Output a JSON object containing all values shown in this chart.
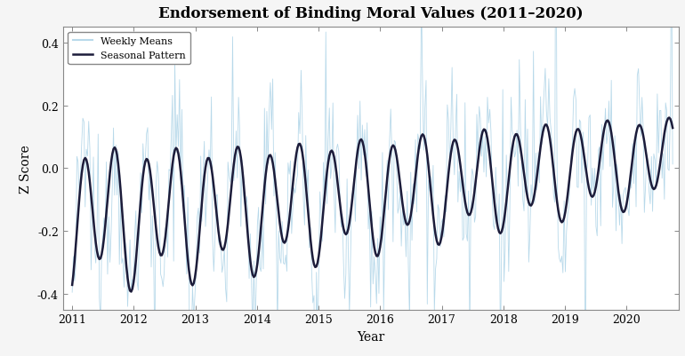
{
  "title": "Endorsement of Binding Moral Values (2011–2020)",
  "xlabel": "Year",
  "ylabel": "Z Score",
  "ylim": [
    -0.45,
    0.45
  ],
  "xlim_start": 2010.85,
  "xlim_end": 2020.85,
  "yticks": [
    -0.4,
    -0.2,
    0.0,
    0.2,
    0.4
  ],
  "xticks": [
    2011,
    2012,
    2013,
    2014,
    2015,
    2016,
    2017,
    2018,
    2019,
    2020
  ],
  "weekly_color": "#b8d9ea",
  "seasonal_color": "#1c1c3a",
  "legend_labels": [
    "Weekly Means",
    "Seasonal Pattern"
  ],
  "background_color": "#f5f5f5",
  "axes_bg": "#ffffff",
  "title_fontsize": 12,
  "label_fontsize": 10,
  "tick_fontsize": 9,
  "legend_fontsize": 8,
  "seasonal_linewidth": 1.8,
  "weekly_linewidth": 0.6,
  "n_weeks": 510
}
